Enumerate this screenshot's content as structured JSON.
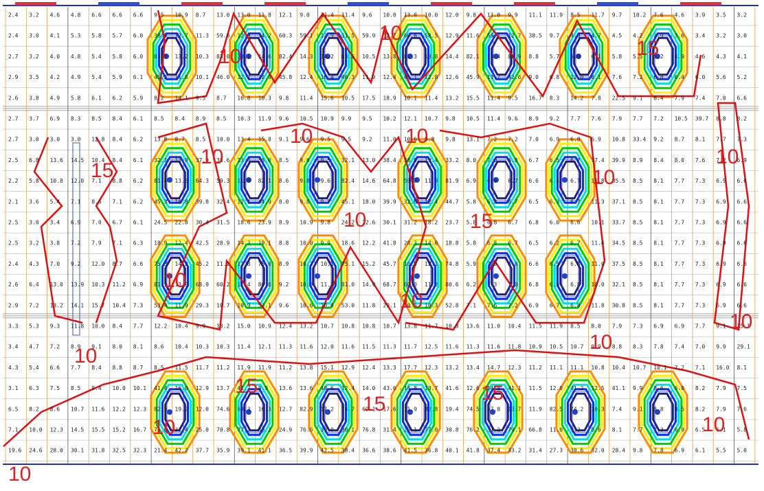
{
  "grid": {
    "rows": [
      [
        "2.4",
        "3.2",
        "4.6",
        "4.8",
        "6.6",
        "6.6",
        "6.6",
        "9.5",
        "10.9",
        "8.7",
        "13.0",
        "13.0",
        "11.8",
        "12.1",
        "9.0",
        "11.4",
        "11.4",
        "9.6",
        "10.0",
        "13.0",
        "10.0",
        "12.0",
        "9.8",
        "11.0",
        "9.9",
        "11.1",
        "11.9",
        "8.5",
        "11.7",
        "9.7",
        "10.2",
        "7.6",
        "4.6",
        "3.9",
        "3.5",
        "3.2"
      ],
      [
        "2.4",
        "3.0",
        "4.1",
        "5.3",
        "5.8",
        "5.7",
        "6.0",
        "38.5",
        "12.7",
        "11.3",
        "59.0",
        "12.9",
        "14.2",
        "60.3",
        "59.1",
        "12.9",
        "11.5",
        "59.9",
        "12.7",
        "60.6",
        "58.5",
        "12.9",
        "11.6",
        "59.1",
        "12.7",
        "38.5",
        "9.7",
        "4.9",
        "4.7",
        "4.5",
        "4.2",
        "3.9",
        "3.6",
        "3.4",
        "3.2",
        "3.0"
      ],
      [
        "2.7",
        "3.2",
        "4.0",
        "4.8",
        "5.4",
        "5.8",
        "6.0",
        "81.3",
        "13.2",
        "10.3",
        "83.0",
        "13.1",
        "14.6",
        "82.4",
        "14.3",
        "14.2",
        "83.5",
        "10.5",
        "13.8",
        "81.3",
        "13.8",
        "14.4",
        "82.1",
        "13.4",
        "80.9",
        "8.8",
        "5.7",
        "6.9",
        "6.1",
        "5.8",
        "5.5",
        "5.2",
        "4.9",
        "4.6",
        "4.3",
        "4.1"
      ],
      [
        "2.9",
        "3.5",
        "4.2",
        "4.9",
        "5.4",
        "5.9",
        "6.1",
        "45.2",
        "11.8",
        "10.1",
        "46.0",
        "12.2",
        "12.9",
        "45.8",
        "12.4",
        "10.4",
        "46.3",
        "11.9",
        "12.4",
        "45.1",
        "12.8",
        "12.6",
        "45.9",
        "11.7",
        "42.6",
        "9.0",
        "6.8",
        "12.0",
        "8.1",
        "7.6",
        "7.2",
        "6.8",
        "6.4",
        "6.0",
        "5.6",
        "5.2"
      ],
      [
        "2.6",
        "3.8",
        "4.9",
        "5.8",
        "6.1",
        "6.2",
        "5.9",
        "8.2",
        "14.1",
        "9.5",
        "8.7",
        "16.8",
        "10.3",
        "9.8",
        "11.4",
        "15.6",
        "10.5",
        "17.5",
        "18.9",
        "10.1",
        "11.4",
        "13.2",
        "15.5",
        "11.4",
        "9.5",
        "16.7",
        "8.3",
        "14.2",
        "7.8",
        "22.5",
        "9.1",
        "8.4",
        "7.9",
        "7.4",
        "7.0",
        "6.6"
      ],
      [
        "2.7",
        "3.7",
        "6.9",
        "8.3",
        "8.5",
        "8.4",
        "6.1",
        "8.5",
        "8.4",
        "8.9",
        "8.5",
        "10.3",
        "11.9",
        "9.6",
        "10.5",
        "10.9",
        "9.9",
        "9.5",
        "10.2",
        "12.1",
        "10.7",
        "9.8",
        "10.5",
        "11.4",
        "9.6",
        "8.9",
        "9.2",
        "7.7",
        "7.6",
        "7.9",
        "7.7",
        "7.2",
        "10.5",
        "39.7",
        "8.8",
        "8.2"
      ],
      [
        "2.7",
        "3.0",
        "3.0",
        "3.0",
        "12.8",
        "8.4",
        "6.2",
        "13.8",
        "8.7",
        "8.5",
        "10.0",
        "13.4",
        "15.8",
        "9.1",
        "9.6",
        "9.5",
        "9.5",
        "9.2",
        "11.0",
        "10.6",
        "9.8",
        "9.8",
        "13.1",
        "7.2",
        "7.2",
        "7.0",
        "6.9",
        "6.8",
        "6.9",
        "10.8",
        "33.4",
        "9.2",
        "8.7",
        "8.1",
        "7.7",
        "7.3"
      ],
      [
        "2.5",
        "6.8",
        "13.6",
        "14.5",
        "10.4",
        "8.4",
        "6.1",
        "32.1",
        "13.0",
        "37.9",
        "38.6",
        "13.4",
        "33.0",
        "8.5",
        "9.6",
        "9.5",
        "32.1",
        "13.0",
        "38.4",
        "38.9",
        "13.4",
        "33.2",
        "8.0",
        "7.0",
        "6.8",
        "6.7",
        "6.5",
        "6.7",
        "17.4",
        "39.9",
        "8.9",
        "8.4",
        "8.0",
        "7.6",
        "7.2",
        "6.9"
      ],
      [
        "2.2",
        "5.8",
        "10.8",
        "12.0",
        "7.1",
        "8.8",
        "6.2",
        "81.4",
        "13.5",
        "64.3",
        "59.3",
        "11.6",
        "82.1",
        "8.6",
        "9.8",
        "9.6",
        "82.4",
        "14.6",
        "64.8",
        "59.7",
        "11.9",
        "81.9",
        "6.9",
        "6.9",
        "6.7",
        "6.6",
        "6.4",
        "6.7",
        "11.8",
        "35.5",
        "8.5",
        "8.1",
        "7.7",
        "7.3",
        "6.9",
        "6.6"
      ],
      [
        "2.1",
        "3.6",
        "5.4",
        "7.1",
        "8.6",
        "7.1",
        "6.2",
        "45.3",
        "16.8",
        "39.8",
        "32.4",
        "12.1",
        "44.9",
        "8.0",
        "9.8",
        "9.7",
        "45.1",
        "18.0",
        "39.9",
        "32.6",
        "12.4",
        "44.7",
        "5.8",
        "6.8",
        "6.7",
        "6.5",
        "6.3",
        "6.7",
        "11.3",
        "37.1",
        "8.5",
        "8.1",
        "7.7",
        "7.3",
        "6.9",
        "6.6"
      ],
      [
        "2.5",
        "3.0",
        "3.4",
        "6.9",
        "7.0",
        "6.7",
        "6.1",
        "24.5",
        "22.8",
        "30.4",
        "31.5",
        "18.6",
        "23.9",
        "8.9",
        "10.9",
        "9.8",
        "24.2",
        "22.6",
        "30.1",
        "31.2",
        "18.2",
        "23.7",
        "5.8",
        "6.8",
        "6.7",
        "6.8",
        "6.0",
        "6.6",
        "10.1",
        "33.7",
        "8.5",
        "8.1",
        "7.7",
        "7.3",
        "6.9",
        "6.6"
      ],
      [
        "2.5",
        "3.2",
        "3.8",
        "7.2",
        "7.9",
        "7.1",
        "6.3",
        "18.9",
        "12.4",
        "42.5",
        "28.9",
        "14.3",
        "19.1",
        "8.8",
        "10.0",
        "9.9",
        "18.6",
        "12.2",
        "41.8",
        "28.3",
        "14.0",
        "18.8",
        "5.8",
        "6.8",
        "6.7",
        "6.5",
        "6.2",
        "6.7",
        "11.4",
        "34.5",
        "8.5",
        "8.1",
        "7.7",
        "7.3",
        "6.9",
        "6.6"
      ],
      [
        "2.4",
        "4.3",
        "7.0",
        "9.2",
        "12.0",
        "8.7",
        "6.6",
        "75.3",
        "14.2",
        "45.2",
        "11.2",
        "11.8",
        "75.0",
        "8.9",
        "10.2",
        "10.1",
        "75.1",
        "15.2",
        "45.7",
        "10.9",
        "12.1",
        "74.8",
        "5.9",
        "7.0",
        "6.8",
        "6.6",
        "6.5",
        "6.8",
        "11.0",
        "37.5",
        "8.5",
        "8.1",
        "7.7",
        "7.3",
        "6.9",
        "6.6"
      ],
      [
        "2.6",
        "6.4",
        "13.0",
        "13.9",
        "10.3",
        "11.2",
        "6.9",
        "81.1",
        "13.9",
        "68.9",
        "60.2",
        "11.4",
        "80.8",
        "9.2",
        "10.5",
        "11.3",
        "81.0",
        "14.9",
        "68.7",
        "60.0",
        "11.2",
        "80.6",
        "6.2",
        "7.3",
        "7.0",
        "6.8",
        "6.6",
        "6.8",
        "10.0",
        "32.1",
        "8.5",
        "8.1",
        "7.7",
        "7.3",
        "6.9",
        "6.6"
      ],
      [
        "2.9",
        "7.2",
        "13.2",
        "14.1",
        "15.7",
        "10.4",
        "7.3",
        "53.4",
        "11.9",
        "29.3",
        "10.7",
        "10.9",
        "53.1",
        "9.6",
        "10.6",
        "10.9",
        "53.0",
        "11.8",
        "29.1",
        "10.5",
        "10.3",
        "52.8",
        "7.1",
        "7.6",
        "7.2",
        "6.9",
        "6.7",
        "6.8",
        "11.8",
        "30.8",
        "8.5",
        "8.1",
        "7.7",
        "7.3",
        "6.9",
        "6.6"
      ],
      [
        "3.3",
        "5.3",
        "9.3",
        "11.8",
        "10.0",
        "8.4",
        "7.7",
        "12.2",
        "10.4",
        "9.9",
        "13.2",
        "15.0",
        "10.9",
        "12.4",
        "13.2",
        "10.7",
        "10.8",
        "10.8",
        "10.7",
        "13.8",
        "11.7",
        "10.8",
        "13.6",
        "11.0",
        "10.4",
        "11.5",
        "11.9",
        "8.5",
        "8.0",
        "7.9",
        "7.3",
        "6.9",
        "6.9",
        "7.7",
        "9.1",
        "35.1"
      ],
      [
        "3.4",
        "4.7",
        "7.2",
        "8.9",
        "9.1",
        "8.0",
        "8.1",
        "8.6",
        "10.4",
        "10.3",
        "10.3",
        "11.4",
        "12.1",
        "11.3",
        "11.6",
        "12.0",
        "11.6",
        "11.5",
        "11.3",
        "11.7",
        "12.5",
        "11.6",
        "11.3",
        "11.6",
        "11.8",
        "10.9",
        "10.5",
        "10.7",
        "9.9",
        "8.8",
        "8.3",
        "7.8",
        "7.4",
        "7.0",
        "9.9",
        "29.1"
      ],
      [
        "4.3",
        "5.4",
        "6.6",
        "7.7",
        "8.4",
        "8.8",
        "8.7",
        "8.5",
        "11.5",
        "11.7",
        "11.2",
        "11.9",
        "11.9",
        "11.2",
        "13.8",
        "15.1",
        "12.9",
        "12.4",
        "13.3",
        "17.7",
        "12.3",
        "13.2",
        "13.4",
        "14.7",
        "12.3",
        "11.2",
        "11.1",
        "11.1",
        "10.8",
        "10.4",
        "10.7",
        "10.1",
        "7.2",
        "7.1",
        "16.0",
        "8.1"
      ],
      [
        "3.1",
        "6.3",
        "7.5",
        "8.5",
        "9.4",
        "10.0",
        "10.1",
        "41.4",
        "16.0",
        "12.9",
        "13.7",
        "41.7",
        "8.9",
        "13.6",
        "13.6",
        "40.6",
        "12.4",
        "14.0",
        "43.6",
        "14.8",
        "13.7",
        "41.6",
        "12.6",
        "14.8",
        "41.1",
        "11.5",
        "12.0",
        "41.2",
        "12.5",
        "41.1",
        "9.9",
        "8.6",
        "6.0",
        "8.2",
        "7.9",
        "7.5"
      ],
      [
        "6.5",
        "8.2",
        "8.6",
        "10.7",
        "11.6",
        "12.2",
        "12.3",
        "82.5",
        "19.2",
        "12.0",
        "74.6",
        "68.3",
        "16.3",
        "12.7",
        "82.9",
        "17.2",
        "74.7",
        "69.1",
        "17.6",
        "11.9",
        "82.8",
        "19.4",
        "74.5",
        "67.8",
        "13.7",
        "11.9",
        "82.5",
        "74.2",
        "10.3",
        "7.4",
        "9.1",
        "8.8",
        "8.5",
        "8.2",
        "7.9",
        "7.6"
      ],
      [
        "7.1",
        "10.0",
        "12.3",
        "14.5",
        "15.5",
        "15.2",
        "16.7",
        "76.0",
        "31.4",
        "25.0",
        "70.8",
        "77.2",
        "30.2",
        "24.9",
        "76.6",
        "30.9",
        "80.1",
        "76.8",
        "31.4",
        "25.1",
        "77.0",
        "30.8",
        "76.2",
        "31.2",
        "79.1",
        "66.8",
        "11.0",
        "9.2",
        "8.6",
        "8.1",
        "7.7",
        "7.3",
        "6.9",
        "6.5",
        "6.1",
        "5.8"
      ],
      [
        "19.6",
        "24.6",
        "28.0",
        "30.1",
        "31.8",
        "32.5",
        "32.3",
        "21.4",
        "42.2",
        "37.7",
        "35.9",
        "39.1",
        "41.1",
        "36.5",
        "39.9",
        "42.5",
        "38.4",
        "36.6",
        "38.6",
        "41.5",
        "36.8",
        "40.1",
        "41.8",
        "37.4",
        "33.2",
        "31.4",
        "27.3",
        "30.6",
        "32.0",
        "28.4",
        "9.8",
        "7.8",
        "6.9",
        "6.1",
        "5.5",
        "5.0"
      ]
    ]
  },
  "contour_labels": [
    "10",
    "10",
    "10",
    "10",
    "10",
    "10",
    "10",
    "10",
    "10",
    "10",
    "10",
    "10",
    "10",
    "10",
    "10",
    "10",
    "15",
    "15",
    "15",
    "15",
    "15",
    "15"
  ]
}
